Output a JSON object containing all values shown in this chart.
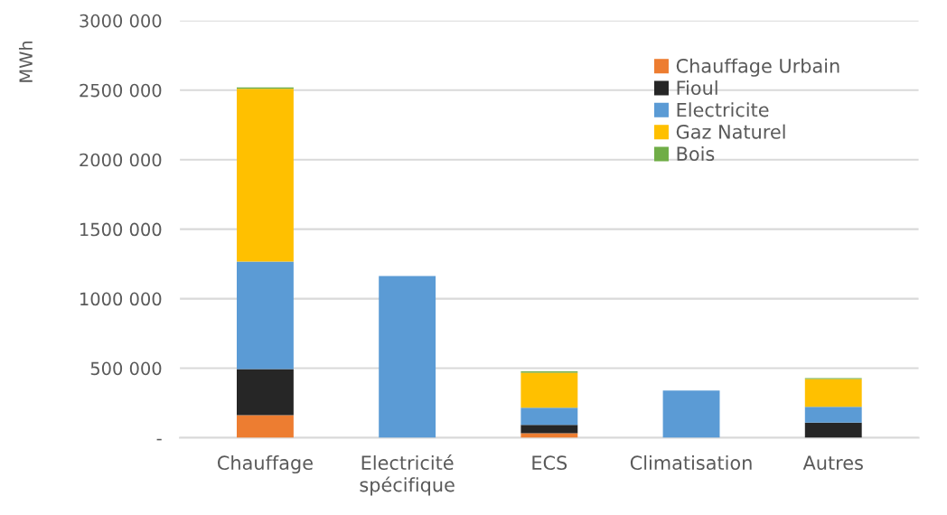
{
  "chart_data": {
    "type": "bar",
    "stacked": true,
    "ylabel": "MWh",
    "categories": [
      "Chauffage",
      "Electricité\nspécifique",
      "ECS",
      "Climatisation",
      "Autres"
    ],
    "series": [
      {
        "name": "Chauffage Urbain",
        "color": "#ed7d31",
        "values": [
          163000,
          0,
          33000,
          0,
          0
        ]
      },
      {
        "name": "Fioul",
        "color": "#262626",
        "values": [
          331000,
          0,
          60000,
          0,
          109000
        ]
      },
      {
        "name": "Electricite",
        "color": "#5b9bd5",
        "values": [
          773000,
          1163000,
          123000,
          340000,
          113000
        ]
      },
      {
        "name": "Gaz Naturel",
        "color": "#ffc000",
        "values": [
          1243000,
          0,
          252000,
          0,
          201000
        ]
      },
      {
        "name": "Bois",
        "color": "#70ad47",
        "values": [
          10000,
          0,
          9000,
          0,
          6000
        ]
      }
    ],
    "ylim": [
      0,
      3000000
    ],
    "yticks": [
      {
        "value": 0,
        "label": "-"
      },
      {
        "value": 500000,
        "label": "500 000"
      },
      {
        "value": 1000000,
        "label": "1000 000"
      },
      {
        "value": 1500000,
        "label": "1500 000"
      },
      {
        "value": 2000000,
        "label": "2000 000"
      },
      {
        "value": 2500000,
        "label": "2500 000"
      },
      {
        "value": 3000000,
        "label": "3000 000"
      }
    ],
    "grid": "y",
    "legend": "top right"
  }
}
